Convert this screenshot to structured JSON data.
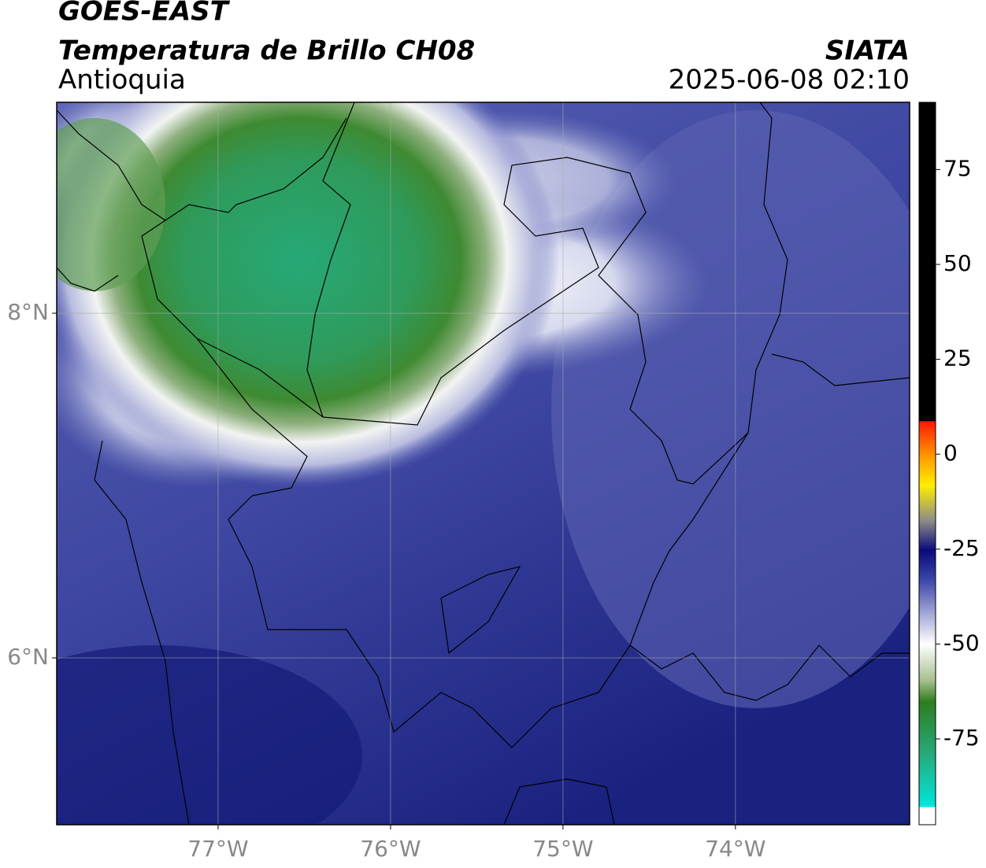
{
  "header": {
    "satellite": "GOES-EAST",
    "product": "Temperatura de Brillo CH08",
    "region": "Antioquia",
    "source": "SIATA",
    "datetime": "2025-06-08 02:10"
  },
  "map": {
    "xlim": [
      -77.936,
      -72.99
    ],
    "ylim": [
      5.032,
      9.224
    ],
    "xticks": [
      {
        "value": -77,
        "label": "77°W"
      },
      {
        "value": -76,
        "label": "76°W"
      },
      {
        "value": -75,
        "label": "75°W"
      },
      {
        "value": -74,
        "label": "74°W"
      }
    ],
    "yticks": [
      {
        "value": 8,
        "label": "8°N"
      },
      {
        "value": 6,
        "label": "6°N"
      }
    ],
    "grid": true
  },
  "colorbar": {
    "lim": [
      -97.6,
      92.7
    ],
    "ticks": [
      75,
      50,
      25,
      0,
      -25,
      -50,
      -75
    ]
  }
}
